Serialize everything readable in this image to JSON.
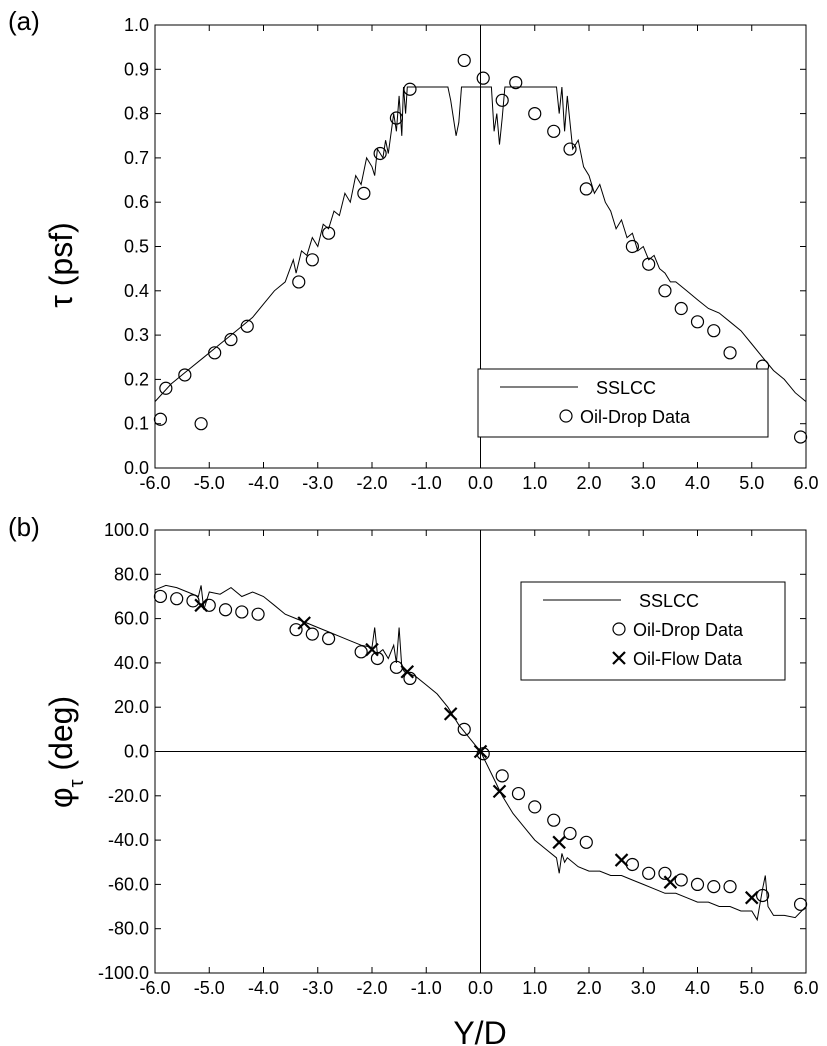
{
  "chart_data": [
    {
      "type": "line",
      "panel_label": "(a)",
      "ylabel_symbol": "τ",
      "ylabel_text": " (psf)",
      "xlabel": "",
      "xlim": [
        -6.0,
        6.0
      ],
      "ylim": [
        0.0,
        1.0
      ],
      "xticks": [
        -6,
        -5,
        -4,
        -3,
        -2,
        -1,
        0,
        1,
        2,
        3,
        4,
        5,
        6
      ],
      "xtick_labels": [
        "-6.0",
        "-5.0",
        "-4.0",
        "-3.0",
        "-2.0",
        "-1.0",
        "0.0",
        "1.0",
        "2.0",
        "3.0",
        "4.0",
        "5.0",
        "6.0"
      ],
      "yticks": [
        0,
        0.1,
        0.2,
        0.3,
        0.4,
        0.5,
        0.6,
        0.7,
        0.8,
        0.9,
        1.0
      ],
      "ytick_labels": [
        "0.0",
        "0.1",
        "0.2",
        "0.3",
        "0.4",
        "0.5",
        "0.6",
        "0.7",
        "0.8",
        "0.9",
        "1.0"
      ],
      "legend_position": "bottom-right",
      "grid": false,
      "series": [
        {
          "name": "SSLCC",
          "kind": "line",
          "x": [
            -6.0,
            -5.7,
            -5.4,
            -5.1,
            -4.8,
            -4.5,
            -4.2,
            -4.0,
            -3.8,
            -3.6,
            -3.45,
            -3.4,
            -3.3,
            -3.2,
            -3.1,
            -3.0,
            -2.9,
            -2.8,
            -2.7,
            -2.6,
            -2.5,
            -2.4,
            -2.3,
            -2.2,
            -2.1,
            -2.0,
            -1.95,
            -1.9,
            -1.8,
            -1.75,
            -1.7,
            -1.6,
            -1.55,
            -1.5,
            -1.45,
            -1.42,
            -1.38,
            -1.35,
            -1.3,
            -1.25,
            -1.2,
            -1.0,
            -0.8,
            -0.6,
            -0.55,
            -0.5,
            -0.45,
            -0.4,
            -0.35,
            -0.3,
            -0.25,
            -0.2,
            -0.1,
            0.0,
            0.1,
            0.2,
            0.25,
            0.3,
            0.35,
            0.4,
            0.45,
            0.5,
            0.55,
            0.6,
            0.8,
            1.0,
            1.2,
            1.3,
            1.35,
            1.4,
            1.45,
            1.5,
            1.55,
            1.6,
            1.7,
            1.8,
            1.9,
            2.0,
            2.1,
            2.2,
            2.3,
            2.4,
            2.5,
            2.6,
            2.7,
            2.8,
            2.9,
            3.0,
            3.1,
            3.2,
            3.3,
            3.4,
            3.5,
            3.6,
            3.8,
            4.0,
            4.2,
            4.4,
            4.6,
            4.8,
            5.0,
            5.2,
            5.4,
            5.6,
            5.8,
            6.0
          ],
          "y": [
            0.15,
            0.19,
            0.22,
            0.25,
            0.28,
            0.31,
            0.34,
            0.37,
            0.4,
            0.42,
            0.47,
            0.44,
            0.49,
            0.48,
            0.52,
            0.5,
            0.55,
            0.54,
            0.58,
            0.57,
            0.62,
            0.6,
            0.66,
            0.64,
            0.7,
            0.68,
            0.66,
            0.72,
            0.7,
            0.74,
            0.71,
            0.8,
            0.76,
            0.84,
            0.75,
            0.86,
            0.8,
            0.86,
            0.86,
            0.86,
            0.86,
            0.86,
            0.86,
            0.86,
            0.83,
            0.79,
            0.75,
            0.78,
            0.86,
            0.86,
            0.86,
            0.86,
            0.86,
            0.86,
            0.86,
            0.86,
            0.76,
            0.8,
            0.73,
            0.79,
            0.86,
            0.86,
            0.86,
            0.86,
            0.86,
            0.86,
            0.86,
            0.86,
            0.86,
            0.86,
            0.8,
            0.86,
            0.76,
            0.84,
            0.72,
            0.74,
            0.68,
            0.66,
            0.62,
            0.64,
            0.6,
            0.58,
            0.54,
            0.56,
            0.52,
            0.53,
            0.49,
            0.5,
            0.47,
            0.48,
            0.45,
            0.44,
            0.42,
            0.42,
            0.4,
            0.38,
            0.36,
            0.35,
            0.33,
            0.31,
            0.28,
            0.25,
            0.22,
            0.2,
            0.17,
            0.15
          ]
        },
        {
          "name": "Oil-Drop Data",
          "kind": "circle",
          "x": [
            -5.9,
            -5.8,
            -5.45,
            -4.9,
            -4.6,
            -4.3,
            -5.15,
            -3.35,
            -3.1,
            -2.8,
            -2.15,
            -1.85,
            -1.55,
            -1.3,
            -0.3,
            0.05,
            0.4,
            0.65,
            1.0,
            1.35,
            1.65,
            1.95,
            2.8,
            3.1,
            3.4,
            3.7,
            4.0,
            4.3,
            4.6,
            5.2,
            5.9
          ],
          "y": [
            0.11,
            0.18,
            0.21,
            0.26,
            0.29,
            0.32,
            0.1,
            0.42,
            0.47,
            0.53,
            0.62,
            0.71,
            0.79,
            0.855,
            0.92,
            0.88,
            0.83,
            0.87,
            0.8,
            0.76,
            0.72,
            0.63,
            0.5,
            0.46,
            0.4,
            0.36,
            0.33,
            0.31,
            0.26,
            0.23,
            0.07
          ]
        }
      ]
    },
    {
      "type": "line",
      "panel_label": "(b)",
      "ylabel_symbol": "φ",
      "ylabel_sub": "τ",
      "ylabel_text": " (deg)",
      "xlabel": "Y/D",
      "xlim": [
        -6.0,
        6.0
      ],
      "ylim": [
        -100.0,
        100.0
      ],
      "xticks": [
        -6,
        -5,
        -4,
        -3,
        -2,
        -1,
        0,
        1,
        2,
        3,
        4,
        5,
        6
      ],
      "xtick_labels": [
        "-6.0",
        "-5.0",
        "-4.0",
        "-3.0",
        "-2.0",
        "-1.0",
        "0.0",
        "1.0",
        "2.0",
        "3.0",
        "4.0",
        "5.0",
        "6.0"
      ],
      "yticks": [
        -100,
        -80,
        -60,
        -40,
        -20,
        0,
        20,
        40,
        60,
        80,
        100
      ],
      "ytick_labels": [
        "-100.0",
        "-80.0",
        "-60.0",
        "-40.0",
        "-20.0",
        "0.0",
        "20.0",
        "40.0",
        "60.0",
        "80.0",
        "100.0"
      ],
      "legend_position": "top-right",
      "grid": false,
      "series": [
        {
          "name": "SSLCC",
          "kind": "line",
          "x": [
            -6.0,
            -5.8,
            -5.6,
            -5.4,
            -5.2,
            -5.15,
            -5.1,
            -5.0,
            -4.8,
            -4.6,
            -4.4,
            -4.2,
            -4.0,
            -3.8,
            -3.6,
            -3.4,
            -3.2,
            -3.0,
            -2.8,
            -2.6,
            -2.4,
            -2.2,
            -2.0,
            -1.95,
            -1.9,
            -1.8,
            -1.7,
            -1.6,
            -1.55,
            -1.5,
            -1.45,
            -1.4,
            -1.2,
            -1.0,
            -0.8,
            -0.6,
            -0.4,
            -0.2,
            0.0,
            0.2,
            0.4,
            0.6,
            0.8,
            1.0,
            1.2,
            1.4,
            1.45,
            1.5,
            1.55,
            1.6,
            1.8,
            2.0,
            2.2,
            2.4,
            2.6,
            2.8,
            3.0,
            3.2,
            3.4,
            3.6,
            3.8,
            4.0,
            4.2,
            4.4,
            4.6,
            4.8,
            5.0,
            5.1,
            5.2,
            5.25,
            5.3,
            5.4,
            5.6,
            5.8,
            6.0
          ],
          "y": [
            73,
            75,
            74,
            72,
            70,
            75,
            64,
            72,
            71,
            74,
            70,
            72,
            70,
            66,
            62,
            60,
            58,
            56,
            54,
            52,
            50,
            48,
            47,
            56,
            44,
            46,
            42,
            48,
            40,
            56,
            38,
            36,
            34,
            30,
            26,
            20,
            12,
            6,
            0,
            -10,
            -20,
            -28,
            -34,
            -40,
            -44,
            -48,
            -55,
            -46,
            -50,
            -48,
            -52,
            -54,
            -54,
            -56,
            -56,
            -58,
            -60,
            -62,
            -64,
            -64,
            -66,
            -68,
            -68,
            -70,
            -70,
            -72,
            -72,
            -76,
            -62,
            -56,
            -70,
            -74,
            -74,
            -75,
            -70
          ]
        },
        {
          "name": "Oil-Drop Data",
          "kind": "circle",
          "x": [
            -5.9,
            -5.6,
            -5.3,
            -5.0,
            -4.7,
            -4.4,
            -4.1,
            -3.4,
            -3.1,
            -2.8,
            -2.2,
            -1.9,
            -1.55,
            -1.3,
            -0.3,
            0.05,
            0.4,
            0.7,
            1.0,
            1.35,
            1.65,
            1.95,
            2.8,
            3.1,
            3.4,
            3.7,
            4.0,
            4.3,
            4.6,
            5.2,
            5.9
          ],
          "y": [
            70,
            69,
            68,
            66,
            64,
            63,
            62,
            55,
            53,
            51,
            45,
            42,
            38,
            33,
            10,
            -1,
            -11,
            -19,
            -25,
            -31,
            -37,
            -41,
            -51,
            -55,
            -55,
            -58,
            -60,
            -61,
            -61,
            -65,
            -69
          ]
        },
        {
          "name": "Oil-Flow Data",
          "kind": "cross",
          "x": [
            -5.15,
            -3.25,
            -2.0,
            -1.35,
            -0.55,
            0.0,
            0.35,
            1.45,
            2.6,
            3.5,
            5.0
          ],
          "y": [
            66,
            58,
            46,
            36,
            17,
            0,
            -18,
            -41,
            -49,
            -59,
            -66
          ]
        }
      ]
    }
  ]
}
